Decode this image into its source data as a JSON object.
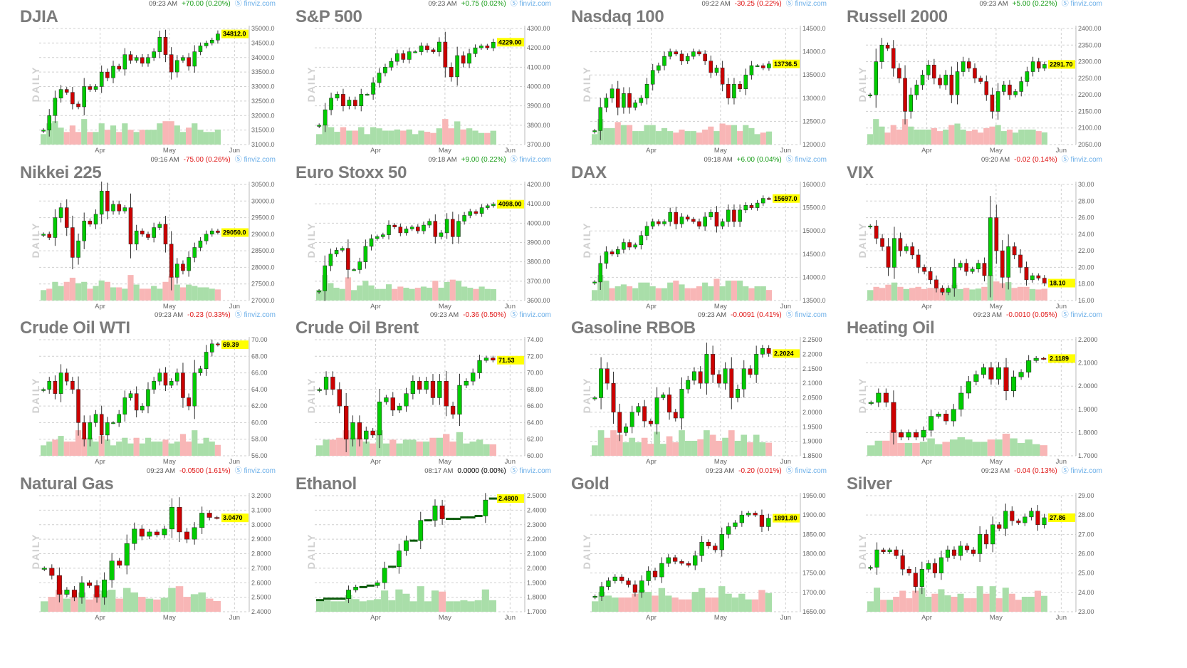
{
  "colors": {
    "up": "#00cc00",
    "down": "#cc0000",
    "up_volume": "#a9dea9",
    "down_volume": "#f8b6b6",
    "positive_change": "#1a9e1a",
    "negative_change": "#e01818",
    "neutral_change": "#000000",
    "last_price_bg": "#ffff00",
    "grid": "#cfcfcf",
    "source_link": "#6aaee8"
  },
  "source_label": "finviz.com",
  "source_icon": "finviz-logo-icon",
  "period_label": "DAILY",
  "x_labels": [
    "Apr",
    "May",
    "Jun"
  ],
  "chart_data": [
    {
      "type": "candlestick",
      "title": "DJIA",
      "time": "09:23 AM",
      "change": "+70.00 (0.20%)",
      "direction": "up",
      "last": "34812.0",
      "ylim": [
        31000,
        35000
      ],
      "yticks": [
        "35000.0",
        "34500.0",
        "34000.0",
        "33500.0",
        "33000.0",
        "32500.0",
        "32000.0",
        "31500.0",
        "31000.0"
      ],
      "close": [
        31500,
        32000,
        32600,
        32900,
        32800,
        32400,
        32300,
        33000,
        32900,
        33000,
        33500,
        33300,
        33700,
        33600,
        34100,
        33900,
        34000,
        33800,
        34000,
        34200,
        34700,
        34100,
        33500,
        33900,
        34000,
        33700,
        34200,
        34400,
        34500,
        34600,
        34812
      ]
    },
    {
      "type": "candlestick",
      "title": "S&P 500",
      "time": "09:23 AM",
      "change": "+0.75 (0.02%)",
      "direction": "up",
      "last": "4229.00",
      "ylim": [
        3700,
        4300
      ],
      "yticks": [
        "4300.00",
        "4200.00",
        "4100.00",
        "4000.00",
        "3900.00",
        "3800.00",
        "3700.00"
      ],
      "close": [
        3800,
        3880,
        3940,
        3960,
        3900,
        3930,
        3900,
        3960,
        3960,
        4020,
        4070,
        4100,
        4130,
        4170,
        4140,
        4180,
        4180,
        4210,
        4190,
        4180,
        4230,
        4100,
        4050,
        4160,
        4120,
        4170,
        4200,
        4210,
        4200,
        4229
      ]
    },
    {
      "type": "candlestick",
      "title": "Nasdaq 100",
      "time": "09:22 AM",
      "change": "-30.25 (0.22%)",
      "direction": "down",
      "last": "13736.5",
      "ylim": [
        12000,
        14500
      ],
      "yticks": [
        "14500.0",
        "14000.0",
        "13500.0",
        "13000.0",
        "12500.0",
        "12000.0"
      ],
      "close": [
        12300,
        12800,
        13000,
        13200,
        12800,
        13100,
        12800,
        12900,
        13000,
        13300,
        13600,
        13700,
        13900,
        14000,
        13950,
        13800,
        13900,
        14000,
        13950,
        13800,
        13550,
        13650,
        13300,
        13000,
        13300,
        13200,
        13500,
        13700,
        13700,
        13650,
        13736.5
      ]
    },
    {
      "type": "candlestick",
      "title": "Russell 2000",
      "time": "09:23 AM",
      "change": "+5.00 (0.22%)",
      "direction": "up",
      "last": "2291.70",
      "ylim": [
        2050,
        2400
      ],
      "yticks": [
        "2400.00",
        "2350.00",
        "2300.00",
        "2250.00",
        "2200.00",
        "2150.00",
        "2100.00",
        "2050.00"
      ],
      "close": [
        2200,
        2300,
        2350,
        2340,
        2280,
        2250,
        2150,
        2200,
        2230,
        2260,
        2290,
        2250,
        2230,
        2260,
        2200,
        2270,
        2300,
        2280,
        2250,
        2240,
        2200,
        2150,
        2210,
        2230,
        2200,
        2210,
        2240,
        2270,
        2300,
        2280,
        2291.7
      ]
    },
    {
      "type": "candlestick",
      "title": "Nikkei 225",
      "time": "09:16 AM",
      "change": "-75.00 (0.26%)",
      "direction": "down",
      "last": "29050.0",
      "ylim": [
        27000,
        30500
      ],
      "yticks": [
        "30500.0",
        "30000.0",
        "29500.0",
        "29000.0",
        "28500.0",
        "28000.0",
        "27500.0",
        "27000.0"
      ],
      "close": [
        29000,
        28900,
        29500,
        29800,
        29200,
        28300,
        28800,
        29400,
        29300,
        29600,
        30300,
        29700,
        29900,
        29700,
        29800,
        28700,
        29100,
        29000,
        28900,
        29200,
        29300,
        28700,
        27700,
        28100,
        27900,
        28300,
        28600,
        28800,
        29000,
        29100,
        29050
      ]
    },
    {
      "type": "candlestick",
      "title": "Euro Stoxx 50",
      "time": "09:18 AM",
      "change": "+9.00 (0.22%)",
      "direction": "up",
      "last": "4098.00",
      "ylim": [
        3600,
        4200
      ],
      "yticks": [
        "4200.00",
        "4100.00",
        "4000.00",
        "3900.00",
        "3800.00",
        "3700.00",
        "3600.00"
      ],
      "close": [
        3650,
        3780,
        3840,
        3860,
        3870,
        3760,
        3760,
        3800,
        3880,
        3920,
        3930,
        3940,
        3990,
        3980,
        3950,
        3970,
        3980,
        3960,
        3990,
        4010,
        3930,
        3950,
        4020,
        3930,
        4010,
        4040,
        4060,
        4050,
        4080,
        4090,
        4098
      ]
    },
    {
      "type": "candlestick",
      "title": "DAX",
      "time": "09:18 AM",
      "change": "+6.00 (0.04%)",
      "direction": "up",
      "last": "15697.0",
      "ylim": [
        13500,
        16000
      ],
      "yticks": [
        "16000.0",
        "15500.0",
        "15000.0",
        "14500.0",
        "14000.0",
        "13500.0"
      ],
      "close": [
        13900,
        14300,
        14550,
        14500,
        14600,
        14750,
        14650,
        14700,
        14900,
        15100,
        15200,
        15150,
        15200,
        15400,
        15150,
        15300,
        15250,
        15200,
        15100,
        15300,
        15400,
        15100,
        15200,
        15450,
        15200,
        15450,
        15550,
        15500,
        15600,
        15700,
        15697
      ]
    },
    {
      "type": "candlestick",
      "title": "VIX",
      "time": "09:20 AM",
      "change": "-0.02 (0.14%)",
      "direction": "down",
      "last": "18.10",
      "ylim": [
        16,
        30
      ],
      "yticks": [
        "30.00",
        "28.00",
        "26.00",
        "24.00",
        "22.00",
        "20.00",
        "18.00",
        "16.00"
      ],
      "close": [
        25,
        23.5,
        22.5,
        20,
        23.5,
        22,
        22.5,
        21.5,
        20,
        19.5,
        18.5,
        17.5,
        17,
        17.5,
        20,
        20.5,
        19.5,
        19.8,
        20.5,
        19,
        26,
        22,
        18.8,
        22.5,
        21.5,
        20,
        18.5,
        19,
        18.7,
        18.1
      ]
    },
    {
      "type": "candlestick",
      "title": "Crude Oil WTI",
      "time": "09:23 AM",
      "change": "-0.23 (0.33%)",
      "direction": "down",
      "last": "69.39",
      "ylim": [
        56,
        70
      ],
      "yticks": [
        "70.00",
        "68.00",
        "66.00",
        "64.00",
        "62.00",
        "60.00",
        "58.00",
        "56.00"
      ],
      "close": [
        64,
        65,
        63.5,
        66,
        65,
        64,
        60,
        58,
        60,
        61,
        58.5,
        60,
        60,
        61,
        63,
        63.5,
        61.5,
        62,
        64,
        65,
        66,
        64.5,
        65,
        66,
        63,
        62,
        66,
        66.5,
        68.5,
        69.5,
        69.39
      ]
    },
    {
      "type": "candlestick",
      "title": "Crude Oil Brent",
      "time": "09:23 AM",
      "change": "-0.36 (0.50%)",
      "direction": "down",
      "last": "71.53",
      "ylim": [
        60,
        74
      ],
      "yticks": [
        "74.00",
        "72.00",
        "70.00",
        "68.00",
        "66.00",
        "64.00",
        "62.00",
        "60.00"
      ],
      "close": [
        68,
        69.5,
        68,
        66,
        62,
        64,
        62,
        63,
        62.5,
        66.5,
        67,
        65.5,
        66,
        67.5,
        69,
        68,
        69,
        67,
        69,
        66,
        65,
        68.5,
        69,
        70,
        71.5,
        71.8,
        71.53
      ]
    },
    {
      "type": "candlestick",
      "title": "Gasoline RBOB",
      "time": "09:23 AM",
      "change": "-0.0091 (0.41%)",
      "direction": "down",
      "last": "2.2024",
      "ylim": [
        1.85,
        2.25
      ],
      "yticks": [
        "2.2500",
        "2.2000",
        "2.1500",
        "2.1000",
        "2.0500",
        "2.0000",
        "1.9500",
        "1.9000",
        "1.8500"
      ],
      "close": [
        2.05,
        2.15,
        2.1,
        2.0,
        1.93,
        1.95,
        2.0,
        2.02,
        1.97,
        1.96,
        2.05,
        2.06,
        2.0,
        1.98,
        2.08,
        2.11,
        2.14,
        2.1,
        2.2,
        2.13,
        2.1,
        2.15,
        2.05,
        2.08,
        2.15,
        2.13,
        2.2,
        2.22,
        2.2024
      ]
    },
    {
      "type": "candlestick",
      "title": "Heating Oil",
      "time": "09:23 AM",
      "change": "-0.0010 (0.05%)",
      "direction": "down",
      "last": "2.1189",
      "ylim": [
        1.7,
        2.2
      ],
      "yticks": [
        "2.2000",
        "2.1000",
        "2.0000",
        "1.9000",
        "1.8000",
        "1.7000"
      ],
      "close": [
        1.93,
        1.97,
        1.93,
        1.8,
        1.78,
        1.8,
        1.78,
        1.81,
        1.87,
        1.88,
        1.85,
        1.9,
        1.97,
        2.02,
        2.05,
        2.08,
        2.03,
        2.08,
        1.98,
        2.04,
        2.06,
        2.11,
        2.12,
        2.1189
      ]
    },
    {
      "type": "candlestick",
      "title": "Natural Gas",
      "time": "09:23 AM",
      "change": "-0.0500 (1.61%)",
      "direction": "down",
      "last": "3.0470",
      "ylim": [
        2.4,
        3.2
      ],
      "yticks": [
        "3.2000",
        "3.1000",
        "3.0000",
        "2.9000",
        "2.8000",
        "2.7000",
        "2.6000",
        "2.5000",
        "2.4000"
      ],
      "close": [
        2.7,
        2.65,
        2.52,
        2.55,
        2.5,
        2.6,
        2.58,
        2.5,
        2.62,
        2.75,
        2.72,
        2.87,
        2.97,
        2.92,
        2.95,
        2.93,
        2.97,
        3.12,
        2.95,
        2.9,
        2.98,
        3.08,
        3.05,
        3.047
      ]
    },
    {
      "type": "candlestick",
      "title": "Ethanol",
      "time": "08:17 AM",
      "change": "0.0000 (0.00%)",
      "direction": "flat",
      "last": "2.4800",
      "ylim": [
        1.7,
        2.5
      ],
      "yticks": [
        "2.5000",
        "2.4000",
        "2.3000",
        "2.2000",
        "2.1000",
        "2.0000",
        "1.9000",
        "1.8000",
        "1.7000"
      ],
      "close": [
        1.78,
        1.79,
        1.79,
        1.79,
        1.85,
        1.87,
        1.87,
        1.88,
        1.9,
        2.0,
        2.01,
        2.12,
        2.19,
        2.19,
        2.33,
        2.33,
        2.43,
        2.34,
        2.34,
        2.34,
        2.35,
        2.35,
        2.36,
        2.47,
        2.48
      ]
    },
    {
      "type": "candlestick",
      "title": "Gold",
      "time": "09:23 AM",
      "change": "-0.20 (0.01%)",
      "direction": "down",
      "last": "1891.80",
      "ylim": [
        1650,
        1950
      ],
      "yticks": [
        "1950.00",
        "1900.00",
        "1850.00",
        "1800.00",
        "1750.00",
        "1700.00",
        "1650.00"
      ],
      "close": [
        1690,
        1715,
        1730,
        1740,
        1730,
        1720,
        1700,
        1730,
        1755,
        1740,
        1775,
        1790,
        1780,
        1775,
        1770,
        1795,
        1830,
        1820,
        1810,
        1850,
        1870,
        1880,
        1900,
        1905,
        1900,
        1870,
        1891.8
      ]
    },
    {
      "type": "candlestick",
      "title": "Silver",
      "time": "09:23 AM",
      "change": "-0.04 (0.13%)",
      "direction": "down",
      "last": "27.86",
      "ylim": [
        23,
        29
      ],
      "yticks": [
        "29.00",
        "28.00",
        "27.00",
        "26.00",
        "25.00",
        "24.00",
        "23.00"
      ],
      "close": [
        25.3,
        26.2,
        26.1,
        26.2,
        25.9,
        25.2,
        25,
        24.3,
        25.2,
        25.5,
        25,
        25.8,
        26.2,
        25.9,
        26.4,
        26.2,
        26,
        27,
        26.5,
        27.5,
        27.3,
        28.2,
        27.7,
        27.6,
        27.9,
        28.2,
        27.5,
        27.86
      ]
    }
  ]
}
